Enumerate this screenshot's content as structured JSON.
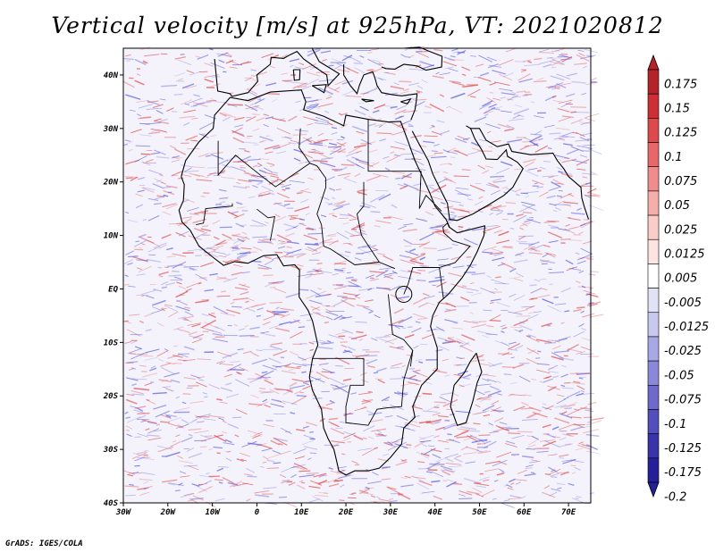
{
  "title": "Vertical velocity [m/s] at 925hPa, VT: 2021020812",
  "footer": "GrADS: IGES/COLA",
  "map": {
    "lon_range": [
      -30,
      75
    ],
    "lat_range": [
      -40,
      45
    ],
    "lat_labels": [
      "40N",
      "30N",
      "20N",
      "10N",
      "EQ",
      "10S",
      "20S",
      "30S",
      "40S"
    ],
    "lon_labels": [
      "30W",
      "20W",
      "10W",
      "0",
      "10E",
      "20E",
      "30E",
      "40E",
      "50E",
      "60E",
      "70E"
    ]
  },
  "colorbar": {
    "levels": [
      "0.175",
      "0.15",
      "0.125",
      "0.1",
      "0.075",
      "0.05",
      "0.025",
      "0.0125",
      "0.005",
      "-0.005",
      "-0.0125",
      "-0.025",
      "-0.05",
      "-0.075",
      "-0.1",
      "-0.125",
      "-0.175",
      "-0.2"
    ],
    "colors": [
      "#b4232a",
      "#cc3036",
      "#dc4a4e",
      "#e8686a",
      "#f08c8c",
      "#f6aeab",
      "#fbcdc8",
      "#fde4e0",
      "#ffffff",
      "#e2e2f6",
      "#c8c8f0",
      "#a8a8e6",
      "#8a88da",
      "#6e6acc",
      "#524ebd",
      "#3a34ab",
      "#25209a"
    ]
  },
  "colors": {
    "pos": "#e05050",
    "neg": "#6060e0",
    "coast": "#000000"
  }
}
